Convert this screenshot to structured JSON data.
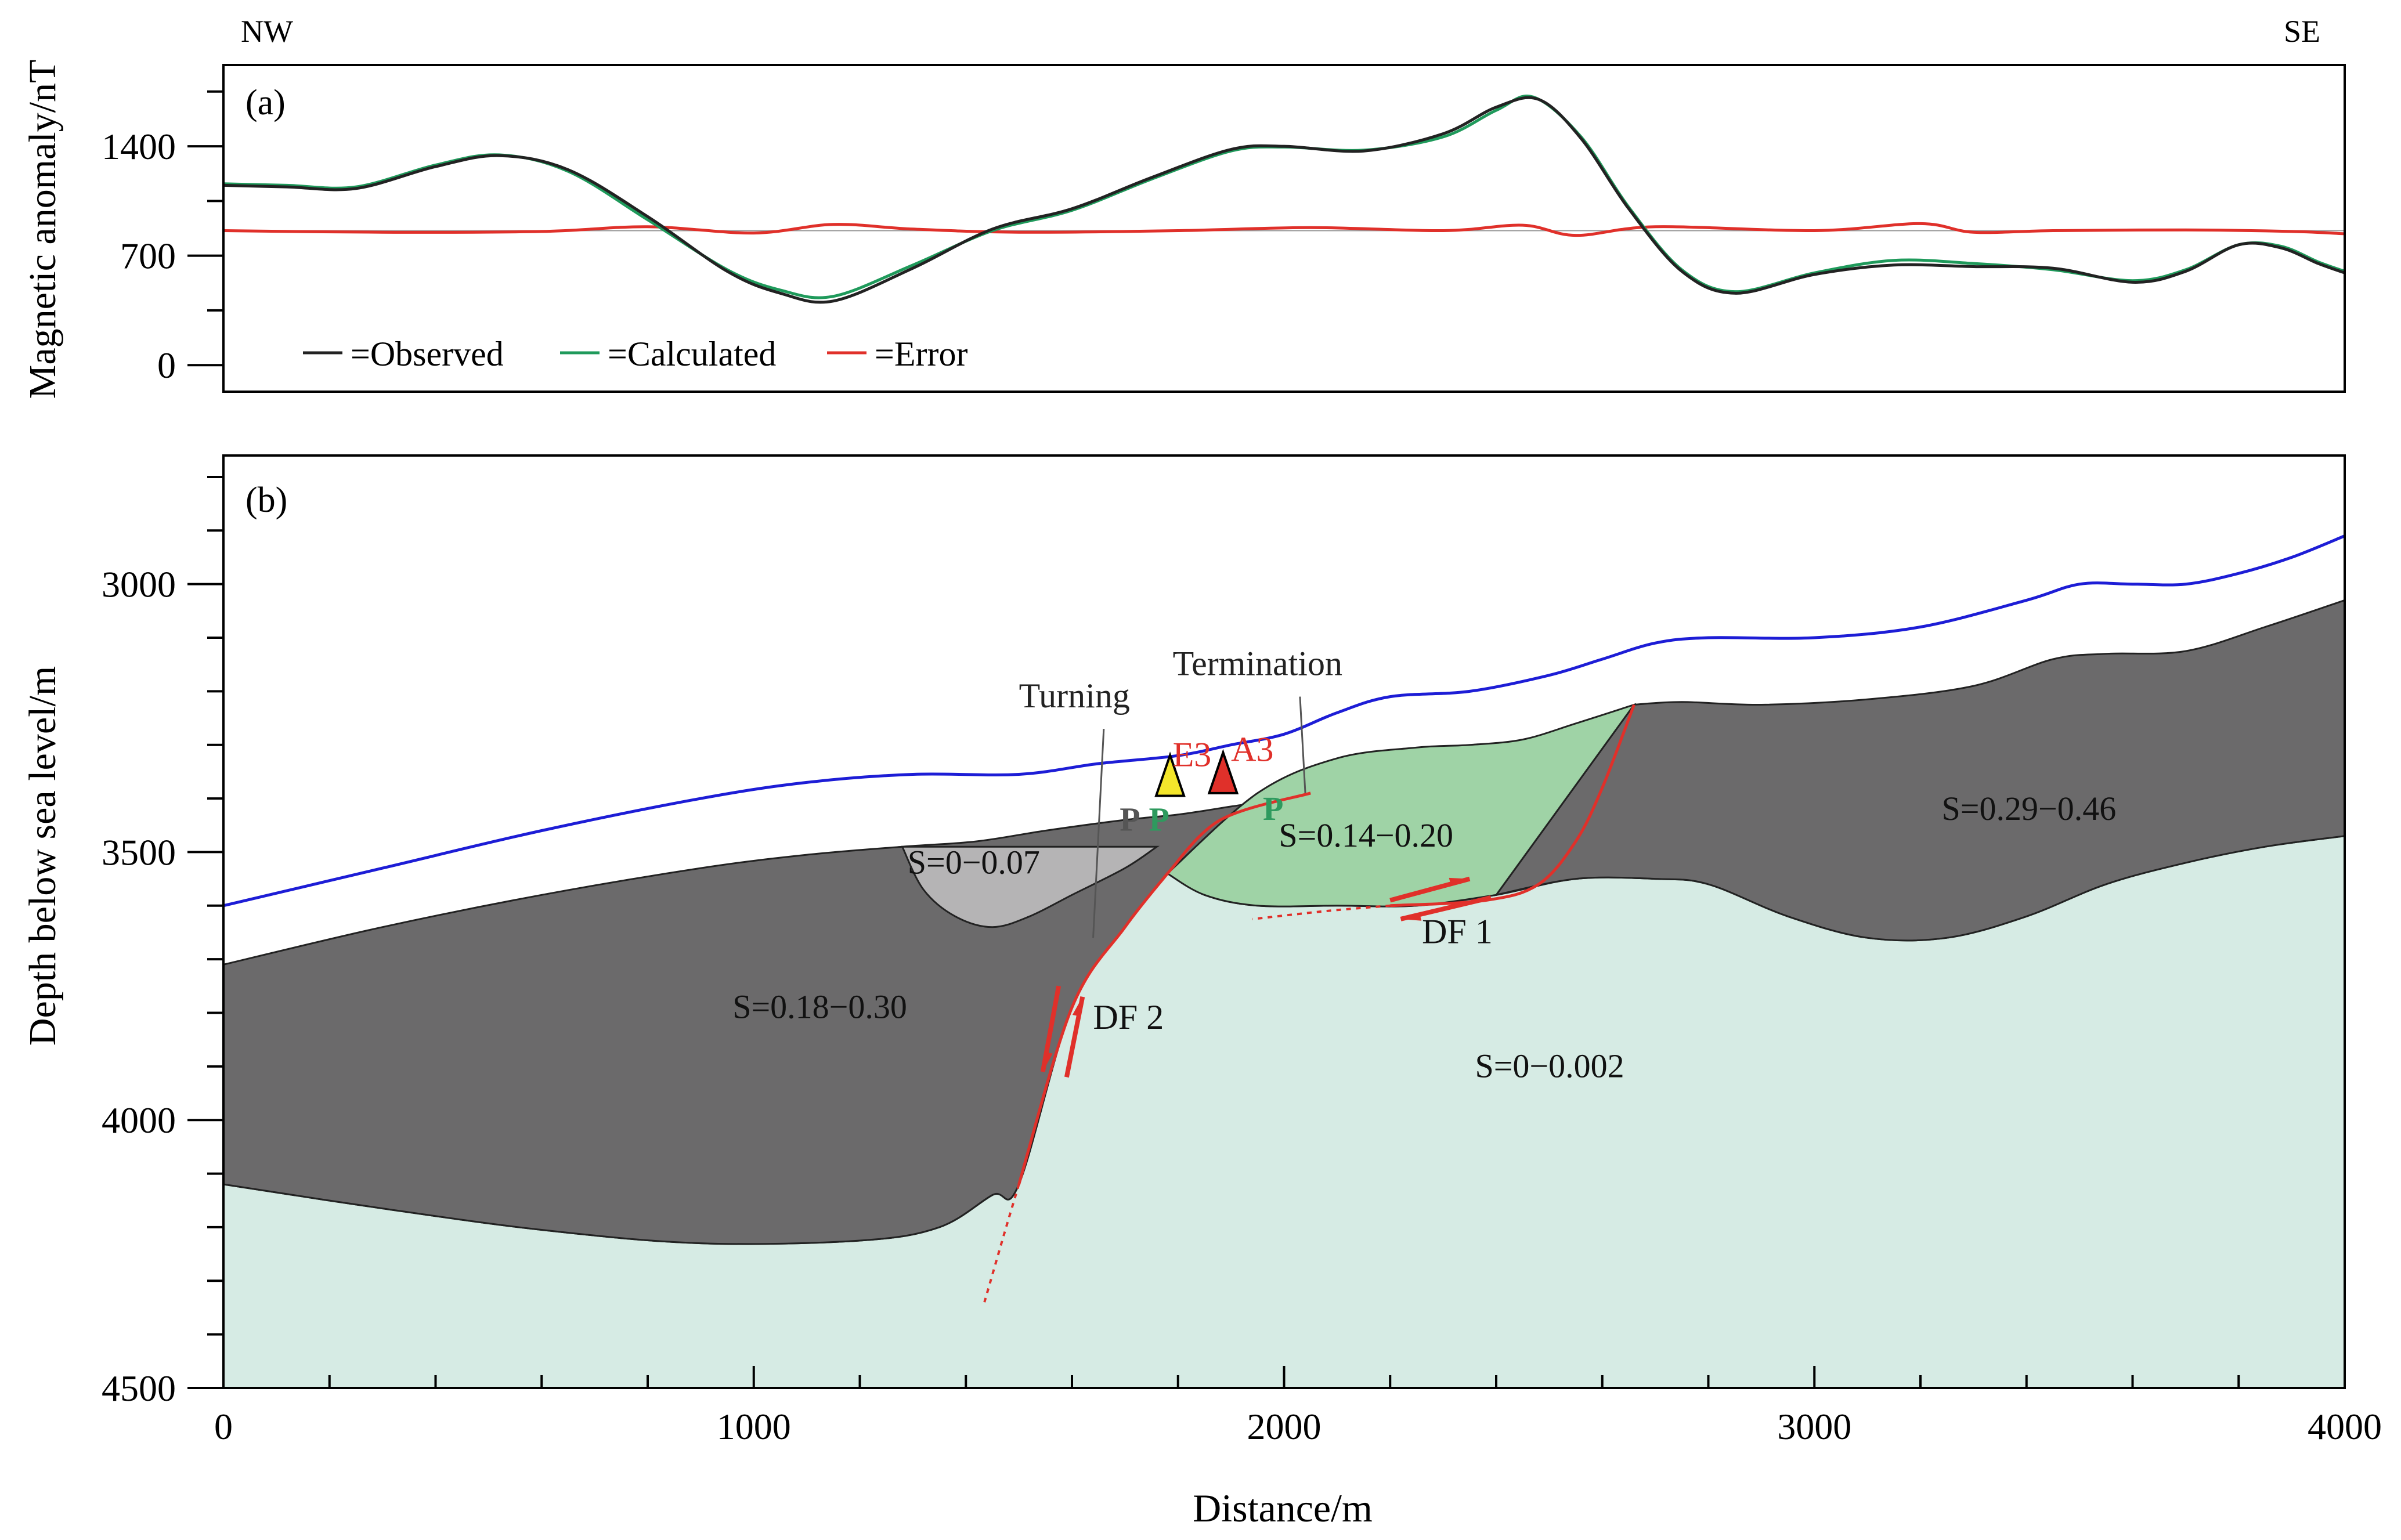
{
  "direction": {
    "left": "NW",
    "right": "SE"
  },
  "chart_data": [
    {
      "panel": "(a)",
      "type": "line",
      "title": "",
      "xlabel": "",
      "ylabel": "Magnetic anomaly/nT",
      "xlim": [
        0,
        4000
      ],
      "ylim": [
        -170,
        1920
      ],
      "yticks": [
        0,
        700,
        1400
      ],
      "grid": false,
      "legend_position": "bottom-left",
      "series": [
        {
          "name": "=Observed",
          "color": "#222222",
          "x": [
            0,
            120,
            250,
            400,
            520,
            650,
            800,
            950,
            1050,
            1150,
            1300,
            1450,
            1600,
            1750,
            1900,
            2000,
            2150,
            2300,
            2400,
            2480,
            2560,
            2650,
            2750,
            2850,
            3000,
            3150,
            3300,
            3450,
            3600,
            3700,
            3800,
            3880,
            3950,
            4000
          ],
          "values": [
            1150,
            1140,
            1130,
            1270,
            1340,
            1250,
            950,
            600,
            460,
            410,
            620,
            870,
            1000,
            1200,
            1380,
            1400,
            1370,
            1480,
            1650,
            1700,
            1450,
            1000,
            600,
            460,
            580,
            640,
            630,
            620,
            530,
            600,
            770,
            750,
            650,
            590
          ]
        },
        {
          "name": "=Calculated",
          "color": "#1f9a5b",
          "x": [
            0,
            120,
            250,
            400,
            520,
            650,
            800,
            950,
            1050,
            1150,
            1300,
            1450,
            1600,
            1750,
            1900,
            2000,
            2150,
            2300,
            2400,
            2470,
            2560,
            2650,
            2750,
            2850,
            3000,
            3150,
            3300,
            3450,
            3600,
            3700,
            3800,
            3880,
            3950,
            4000
          ],
          "values": [
            1160,
            1150,
            1140,
            1280,
            1345,
            1240,
            930,
            610,
            480,
            440,
            640,
            860,
            990,
            1190,
            1370,
            1395,
            1375,
            1460,
            1630,
            1715,
            1460,
            1010,
            610,
            470,
            590,
            670,
            650,
            610,
            540,
            610,
            770,
            760,
            660,
            600
          ]
        },
        {
          "name": "=Error",
          "color": "#e0302a",
          "x": [
            0,
            300,
            600,
            800,
            1000,
            1150,
            1300,
            1500,
            1800,
            2050,
            2300,
            2450,
            2550,
            2700,
            3000,
            3200,
            3300,
            3450,
            3700,
            3900,
            4000
          ],
          "values": [
            860,
            850,
            855,
            885,
            845,
            900,
            870,
            850,
            860,
            880,
            860,
            895,
            830,
            885,
            860,
            905,
            850,
            860,
            865,
            855,
            840
          ]
        }
      ],
      "reference_line": {
        "value": 860,
        "color": "#999999"
      }
    },
    {
      "panel": "(b)",
      "type": "area",
      "title": "",
      "xlabel": "Distance/m",
      "ylabel": "Depth below sea level/m",
      "xlim": [
        0,
        4000
      ],
      "ylim": [
        4500,
        2760
      ],
      "xticks": [
        0,
        1000,
        2000,
        3000,
        4000
      ],
      "yticks": [
        3000,
        3500,
        4000,
        4500
      ],
      "grid": false,
      "boundaries": [
        {
          "name": "seafloor",
          "color": "#1d1dd6",
          "x": [
            0,
            300,
            600,
            900,
            1100,
            1300,
            1500,
            1650,
            1800,
            1900,
            2000,
            2100,
            2200,
            2350,
            2500,
            2600,
            2700,
            2800,
            3000,
            3200,
            3400,
            3500,
            3600,
            3700,
            3800,
            3900,
            4000
          ],
          "values": [
            3600,
            3530,
            3460,
            3400,
            3370,
            3355,
            3355,
            3335,
            3320,
            3300,
            3280,
            3240,
            3210,
            3200,
            3170,
            3140,
            3110,
            3100,
            3100,
            3080,
            3030,
            3000,
            3000,
            3000,
            2980,
            2950,
            2910
          ]
        }
      ],
      "units": [
        {
          "label": "S=0−0.002",
          "color": "#d6ebe4",
          "label_at": [
            2360,
            3920
          ],
          "boundary_x": [
            0,
            300,
            600,
            900,
            1200,
            1350,
            1450,
            1500,
            1600,
            1700,
            1780,
            1850,
            1950,
            2100,
            2250,
            2400,
            2550,
            2700,
            2800,
            2950,
            3100,
            3250,
            3400,
            3550,
            3700,
            3850,
            4000
          ],
          "boundary_y": [
            4120,
            4165,
            4205,
            4230,
            4225,
            4200,
            4140,
            4120,
            3790,
            3640,
            3540,
            3580,
            3600,
            3600,
            3600,
            3580,
            3550,
            3550,
            3560,
            3620,
            3660,
            3660,
            3620,
            3560,
            3520,
            3490,
            3470
          ]
        },
        {
          "label": "S=0.18−0.30",
          "color": "#6b6a6b",
          "label_at": [
            960,
            3810
          ],
          "boundary_x": [
            0,
            300,
            600,
            900,
            1100,
            1280,
            1420,
            1550,
            1700,
            1800,
            1900,
            2000,
            2050
          ],
          "boundary_y": [
            3710,
            3640,
            3580,
            3530,
            3505,
            3490,
            3480,
            3460,
            3440,
            3430,
            3415,
            3400,
            3390
          ]
        },
        {
          "label": "S=0.29−0.46",
          "color": "#6b6a6b",
          "label_at": [
            3240,
            3440
          ],
          "boundary_x": [
            2660,
            2750,
            2900,
            3100,
            3300,
            3450,
            3550,
            3700,
            3850,
            4000
          ],
          "boundary_y": [
            3225,
            3220,
            3225,
            3215,
            3190,
            3140,
            3130,
            3125,
            3080,
            3030
          ]
        },
        {
          "label": "S=0−0.07",
          "color": "#b5b4b5",
          "label_at": [
            1290,
            3540
          ],
          "boundary_x": [
            1280,
            1320,
            1380,
            1450,
            1520,
            1600,
            1700,
            1760
          ],
          "boundary_y": [
            3490,
            3570,
            3620,
            3640,
            3620,
            3580,
            3530,
            3490
          ]
        },
        {
          "label": "S=0.14−0.20",
          "color": "#9fd3a6",
          "label_at": [
            1990,
            3490
          ],
          "boundary_x": [
            1780,
            1950,
            2100,
            2250,
            2350,
            2450,
            2550,
            2660
          ],
          "boundary_y": [
            3540,
            3390,
            3325,
            3305,
            3300,
            3290,
            3260,
            3225
          ]
        }
      ],
      "faults": [
        {
          "label": "DF 1",
          "label_at": [
            2260,
            3670
          ],
          "color": "#e0302a"
        },
        {
          "label": "DF 2",
          "label_at": [
            1640,
            3830
          ],
          "color": "#e0302a"
        }
      ],
      "annotations": [
        {
          "text": "Turning",
          "at": [
            1500,
            3230
          ],
          "leader_to": [
            1640,
            3660
          ]
        },
        {
          "text": "Termination",
          "at": [
            1790,
            3170
          ],
          "leader_to": [
            2040,
            3390
          ]
        },
        {
          "text": "E3",
          "at": [
            1790,
            3340
          ],
          "color": "#e0302a"
        },
        {
          "text": "A3",
          "at": [
            1900,
            3330
          ],
          "color": "#e0302a"
        },
        {
          "text": "P",
          "at": [
            1690,
            3460
          ],
          "color": "#555555"
        },
        {
          "text": "P",
          "at": [
            1745,
            3460
          ],
          "color": "#2e9a5e"
        },
        {
          "text": "P",
          "at": [
            1960,
            3440
          ],
          "color": "#2e9a5e"
        }
      ],
      "wells": [
        {
          "name": "E3",
          "x": 1785,
          "depth": 3395,
          "fill": "#f4e62b"
        },
        {
          "name": "A3",
          "x": 1885,
          "depth": 3390,
          "fill": "#e0302a"
        }
      ]
    }
  ]
}
